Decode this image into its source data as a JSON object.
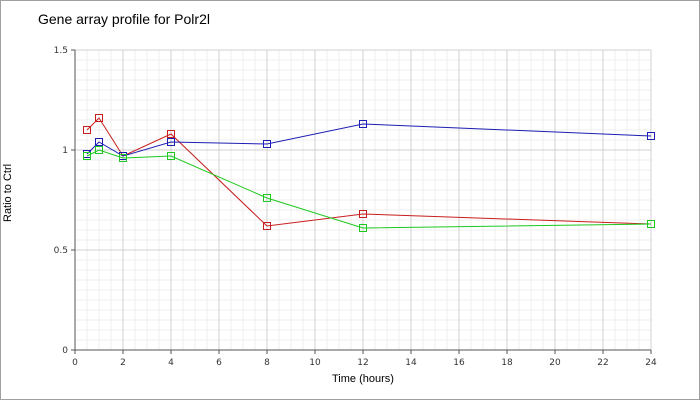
{
  "chart_data": {
    "type": "line",
    "title": "Gene array profile for Polr2l",
    "xlabel": "Time (hours)",
    "ylabel": "Ratio to Ctrl",
    "xlim": [
      0,
      24
    ],
    "ylim": [
      0,
      1.5
    ],
    "xticks": [
      0,
      2,
      4,
      6,
      8,
      10,
      12,
      14,
      16,
      18,
      20,
      22,
      24
    ],
    "yticks": [
      0,
      0.5,
      1,
      1.5
    ],
    "ytick_labels": [
      "0",
      "0.5",
      "1",
      "1.5"
    ],
    "grid": true,
    "marker": "square",
    "series": [
      {
        "color": "#c81e1e",
        "points": [
          [
            0.5,
            1.1
          ],
          [
            1,
            1.16
          ],
          [
            2,
            0.97
          ],
          [
            4,
            1.08
          ],
          [
            8,
            0.62
          ],
          [
            12,
            0.68
          ],
          [
            24,
            0.63
          ]
        ]
      },
      {
        "color": "#1e1eb4",
        "points": [
          [
            0.5,
            0.98
          ],
          [
            1,
            1.04
          ],
          [
            2,
            0.97
          ],
          [
            4,
            1.04
          ],
          [
            8,
            1.03
          ],
          [
            12,
            1.13
          ],
          [
            24,
            1.07
          ]
        ]
      },
      {
        "color": "#1ec81e",
        "points": [
          [
            0.5,
            0.97
          ],
          [
            1,
            1.0
          ],
          [
            2,
            0.96
          ],
          [
            4,
            0.97
          ],
          [
            8,
            0.76
          ],
          [
            12,
            0.61
          ],
          [
            24,
            0.63
          ]
        ]
      }
    ]
  }
}
